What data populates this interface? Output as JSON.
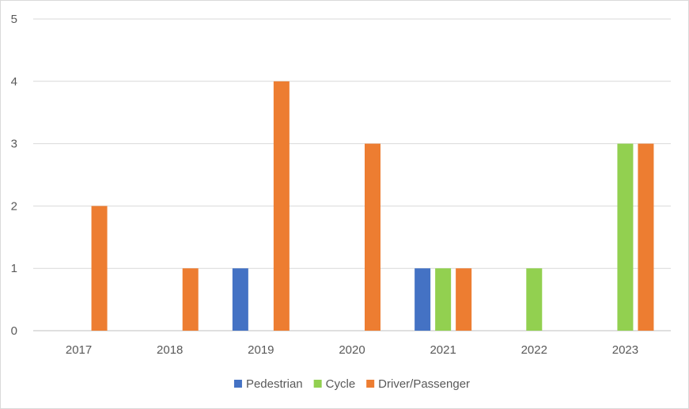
{
  "chart_data": {
    "type": "bar",
    "categories": [
      "2017",
      "2018",
      "2019",
      "2020",
      "2021",
      "2022",
      "2023"
    ],
    "series": [
      {
        "name": "Pedestrian",
        "color": "#4472c4",
        "values": [
          0,
          0,
          1,
          0,
          1,
          0,
          0
        ]
      },
      {
        "name": "Cycle",
        "color": "#92d050",
        "values": [
          0,
          0,
          0,
          0,
          1,
          1,
          3
        ]
      },
      {
        "name": "Driver/Passenger",
        "color": "#ed7d31",
        "values": [
          2,
          1,
          4,
          3,
          1,
          0,
          3
        ]
      }
    ],
    "ylim": [
      0,
      5
    ],
    "yticks": [
      0,
      1,
      2,
      3,
      4,
      5
    ],
    "grid": true,
    "legend": "bottom"
  }
}
